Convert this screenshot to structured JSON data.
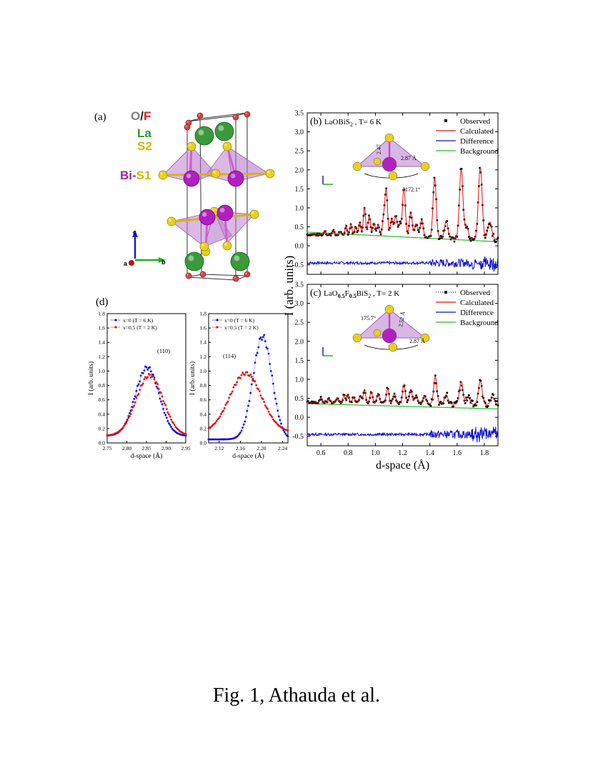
{
  "panel_a": {
    "label": "(a)",
    "legend": [
      {
        "parts": [
          {
            "text": "O",
            "color": "#808080"
          },
          {
            "text": "/",
            "color": "#222222"
          },
          {
            "text": "F",
            "color": "#e02020"
          }
        ]
      },
      {
        "parts": [
          {
            "text": "La",
            "color": "#2a9a2a"
          }
        ]
      },
      {
        "parts": [
          {
            "text": "S2",
            "color": "#d8b400"
          }
        ]
      },
      {
        "parts": [
          {
            "text": "Bi",
            "color": "#a020a0"
          },
          {
            "text": "-",
            "color": "#a020a0"
          },
          {
            "text": "S1",
            "color": "#d8b400"
          }
        ]
      }
    ],
    "axes": {
      "c": "c",
      "a": "a",
      "b": "b"
    }
  },
  "chart_data": [
    {
      "id": "b",
      "type": "line",
      "panel_label": "(b)",
      "title_main": "LaOBiS",
      "title_sub": "2",
      "title_tail": " ,  T= 6 K",
      "xlim": [
        0.5,
        1.9
      ],
      "ylim": [
        -0.75,
        3.5
      ],
      "yticks": [
        -0.5,
        0.0,
        0.5,
        1.0,
        1.5,
        2.0,
        2.5,
        3.0,
        3.5
      ],
      "ytick_labels": [
        "-0.5",
        "0.0",
        "0.5",
        "1.0",
        "1.5",
        "2.0",
        "2.5",
        "3.0",
        "3.5"
      ],
      "xticks": [
        0.6,
        0.8,
        1.0,
        1.2,
        1.4,
        1.6,
        1.8
      ],
      "xtick_labels": [
        "",
        "",
        "",
        "",
        "",
        "",
        ""
      ],
      "legend": [
        "Observed",
        "Calculated",
        "Difference",
        "Background"
      ],
      "background": {
        "a": 0.36,
        "b": -0.18
      },
      "baseline": 0.3,
      "peaks": [
        {
          "x": 0.63,
          "h": 0.12
        },
        {
          "x": 0.69,
          "h": 0.14
        },
        {
          "x": 0.74,
          "h": 0.1
        },
        {
          "x": 0.785,
          "h": 0.25
        },
        {
          "x": 0.82,
          "h": 0.3
        },
        {
          "x": 0.855,
          "h": 0.22
        },
        {
          "x": 0.885,
          "h": 0.35
        },
        {
          "x": 0.92,
          "h": 0.75
        },
        {
          "x": 0.955,
          "h": 0.55
        },
        {
          "x": 0.99,
          "h": 0.35
        },
        {
          "x": 1.02,
          "h": 0.3
        },
        {
          "x": 1.06,
          "h": 0.45
        },
        {
          "x": 1.08,
          "h": 1.2
        },
        {
          "x": 1.12,
          "h": 0.45
        },
        {
          "x": 1.15,
          "h": 0.55
        },
        {
          "x": 1.18,
          "h": 0.35
        },
        {
          "x": 1.21,
          "h": 1.3
        },
        {
          "x": 1.26,
          "h": 0.65
        },
        {
          "x": 1.3,
          "h": 0.35
        },
        {
          "x": 1.34,
          "h": 0.45
        },
        {
          "x": 1.435,
          "h": 1.58
        },
        {
          "x": 1.52,
          "h": 0.45
        },
        {
          "x": 1.63,
          "h": 1.82
        },
        {
          "x": 1.67,
          "h": 0.3
        },
        {
          "x": 1.77,
          "h": 1.88
        },
        {
          "x": 1.84,
          "h": 0.45
        }
      ],
      "diff_offset": -0.45,
      "inset_labels": [
        "2.47",
        "2.87 Å",
        "172.1°"
      ]
    },
    {
      "id": "c",
      "type": "line",
      "panel_label": "(c)",
      "title_main": "LaO",
      "title_sub1": "0.5",
      "title_mid": "F",
      "title_sub2": "0.5",
      "title_end": "BiS",
      "title_sub3": "2",
      "title_tail": " ,  T= 2 K",
      "xlabel": "d-space (Å)",
      "xlim": [
        0.5,
        1.9
      ],
      "ylim": [
        -0.75,
        3.5
      ],
      "yticks": [
        -0.5,
        0.0,
        0.5,
        1.0,
        1.5,
        2.0,
        2.5,
        3.0,
        3.5
      ],
      "ytick_labels": [
        "-0.5",
        "0.0",
        "0.5",
        "1.0",
        "1.5",
        "2.0",
        "2.5",
        "3.0",
        "3.5"
      ],
      "xticks": [
        0.6,
        0.8,
        1.0,
        1.2,
        1.4,
        1.6,
        1.8
      ],
      "xtick_labels": [
        "0.6",
        "0.8",
        "1.0",
        "1.2",
        "1.4",
        "1.6",
        "1.8"
      ],
      "legend": [
        "Observed",
        "Calculated",
        "Difference",
        "Background"
      ],
      "background": {
        "a": 0.36,
        "b": -0.1
      },
      "baseline": 0.4,
      "peaks": [
        {
          "x": 0.6,
          "h": 0.12
        },
        {
          "x": 0.66,
          "h": 0.1
        },
        {
          "x": 0.72,
          "h": 0.12
        },
        {
          "x": 0.77,
          "h": 0.2
        },
        {
          "x": 0.8,
          "h": 0.22
        },
        {
          "x": 0.84,
          "h": 0.15
        },
        {
          "x": 0.89,
          "h": 0.2
        },
        {
          "x": 0.92,
          "h": 0.35
        },
        {
          "x": 0.97,
          "h": 0.3
        },
        {
          "x": 1.02,
          "h": 0.25
        },
        {
          "x": 1.09,
          "h": 0.4
        },
        {
          "x": 1.14,
          "h": 0.25
        },
        {
          "x": 1.21,
          "h": 0.5
        },
        {
          "x": 1.26,
          "h": 0.35
        },
        {
          "x": 1.3,
          "h": 0.2
        },
        {
          "x": 1.36,
          "h": 0.2
        },
        {
          "x": 1.44,
          "h": 0.72
        },
        {
          "x": 1.52,
          "h": 0.25
        },
        {
          "x": 1.63,
          "h": 0.6
        },
        {
          "x": 1.68,
          "h": 0.2
        },
        {
          "x": 1.77,
          "h": 0.62
        },
        {
          "x": 1.86,
          "h": 0.2
        }
      ],
      "diff_offset": -0.45,
      "inset_labels": [
        "175.7°",
        "2.52 Å",
        "2.87 Å"
      ]
    },
    {
      "id": "d1",
      "type": "scatter",
      "panel_label": "(d)",
      "xlabel": "d-space (Å)",
      "ylabel": "I (arb. units)",
      "xlim": [
        2.75,
        2.95
      ],
      "ylim": [
        0.0,
        1.8
      ],
      "xticks": [
        2.75,
        2.8,
        2.85,
        2.9,
        2.95
      ],
      "xtick_labels": [
        "2.75",
        "2.80",
        "2.85",
        "2.90",
        "2.95"
      ],
      "yticks": [
        0.0,
        0.2,
        0.4,
        0.6,
        0.8,
        1.0,
        1.2,
        1.4,
        1.6,
        1.8
      ],
      "ytick_labels": [
        "0.0",
        "0.2",
        "0.4",
        "0.6",
        "0.8",
        "1.0",
        "1.2",
        "1.4",
        "1.6",
        "1.8"
      ],
      "annotation": "(110)",
      "series": [
        {
          "name": "x=0 (T = 6 K)",
          "color": "#1010e0",
          "center": 2.852,
          "amp": 1.05,
          "width": 0.03,
          "base": 0.1
        },
        {
          "name": "x=0.5 (T = 2 K)",
          "color": "#e01010",
          "center": 2.858,
          "amp": 0.94,
          "width": 0.034,
          "base": 0.1
        }
      ]
    },
    {
      "id": "d2",
      "type": "scatter",
      "xlabel": "d-space (Å)",
      "ylabel": "I (arb. units)",
      "xlim": [
        2.1,
        2.25
      ],
      "ylim": [
        0.0,
        1.8
      ],
      "xticks": [
        2.12,
        2.16,
        2.2,
        2.24
      ],
      "xtick_labels": [
        "2.12",
        "2.16",
        "2.20",
        "2.24"
      ],
      "yticks": [
        0.0,
        0.2,
        0.4,
        0.6,
        0.8,
        1.0,
        1.2,
        1.4,
        1.6,
        1.8
      ],
      "ytick_labels": [
        "0.0",
        "0.2",
        "0.4",
        "0.6",
        "0.8",
        "1.0",
        "1.2",
        "1.4",
        "1.6",
        "1.8"
      ],
      "annotation": "(114)",
      "series": [
        {
          "name": "x=0 (T = 6 K)",
          "color": "#1010e0",
          "center": 2.202,
          "amp": 1.48,
          "width": 0.018,
          "base": 0.05
        },
        {
          "name": "x=0.5 (T = 2 K)",
          "color": "#e01010",
          "center": 2.17,
          "amp": 0.97,
          "width": 0.03,
          "base": 0.15
        }
      ]
    }
  ],
  "shared_ylabel": "I (arb. units)",
  "caption": "Fig. 1, Athauda et al."
}
